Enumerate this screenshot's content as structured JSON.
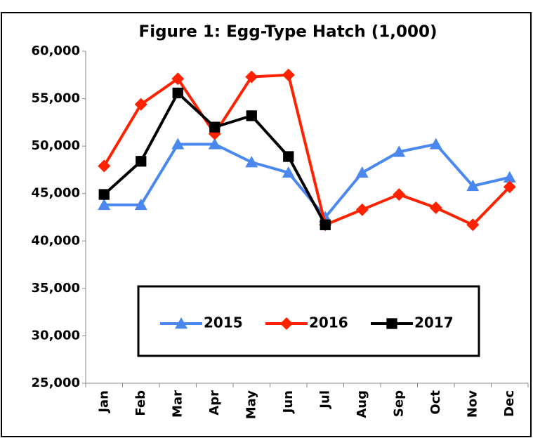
{
  "chart_data": {
    "type": "line",
    "title": "Figure 1: Egg-Type Hatch (1,000)",
    "categories": [
      "Jan",
      "Feb",
      "Mar",
      "Apr",
      "May",
      "Jun",
      "Jul",
      "Aug",
      "Sep",
      "Oct",
      "Nov",
      "Dec"
    ],
    "series": [
      {
        "name": "2015",
        "color": "#4a88f0",
        "marker": "triangle",
        "values": [
          43800,
          43800,
          50200,
          50200,
          48300,
          47200,
          42500,
          47200,
          49400,
          50200,
          45800,
          46700
        ]
      },
      {
        "name": "2016",
        "color": "#ff2200",
        "marker": "diamond",
        "values": [
          47900,
          54400,
          57100,
          51300,
          57300,
          57500,
          41700,
          43300,
          44900,
          43500,
          41700,
          45700
        ]
      },
      {
        "name": "2017",
        "color": "#000000",
        "marker": "square",
        "values": [
          44900,
          48400,
          55600,
          52000,
          53200,
          48900,
          41700,
          null,
          null,
          null,
          null,
          null
        ]
      }
    ],
    "ylim": [
      25000,
      60000
    ],
    "yticks": [
      {
        "value": 25000,
        "label": "25,000"
      },
      {
        "value": 30000,
        "label": "30,000"
      },
      {
        "value": 35000,
        "label": "35,000"
      },
      {
        "value": 40000,
        "label": "40,000"
      },
      {
        "value": 45000,
        "label": "45,000"
      },
      {
        "value": 50000,
        "label": "50,000"
      },
      {
        "value": 55000,
        "label": "55,000"
      },
      {
        "value": 60000,
        "label": "60,000"
      }
    ]
  }
}
